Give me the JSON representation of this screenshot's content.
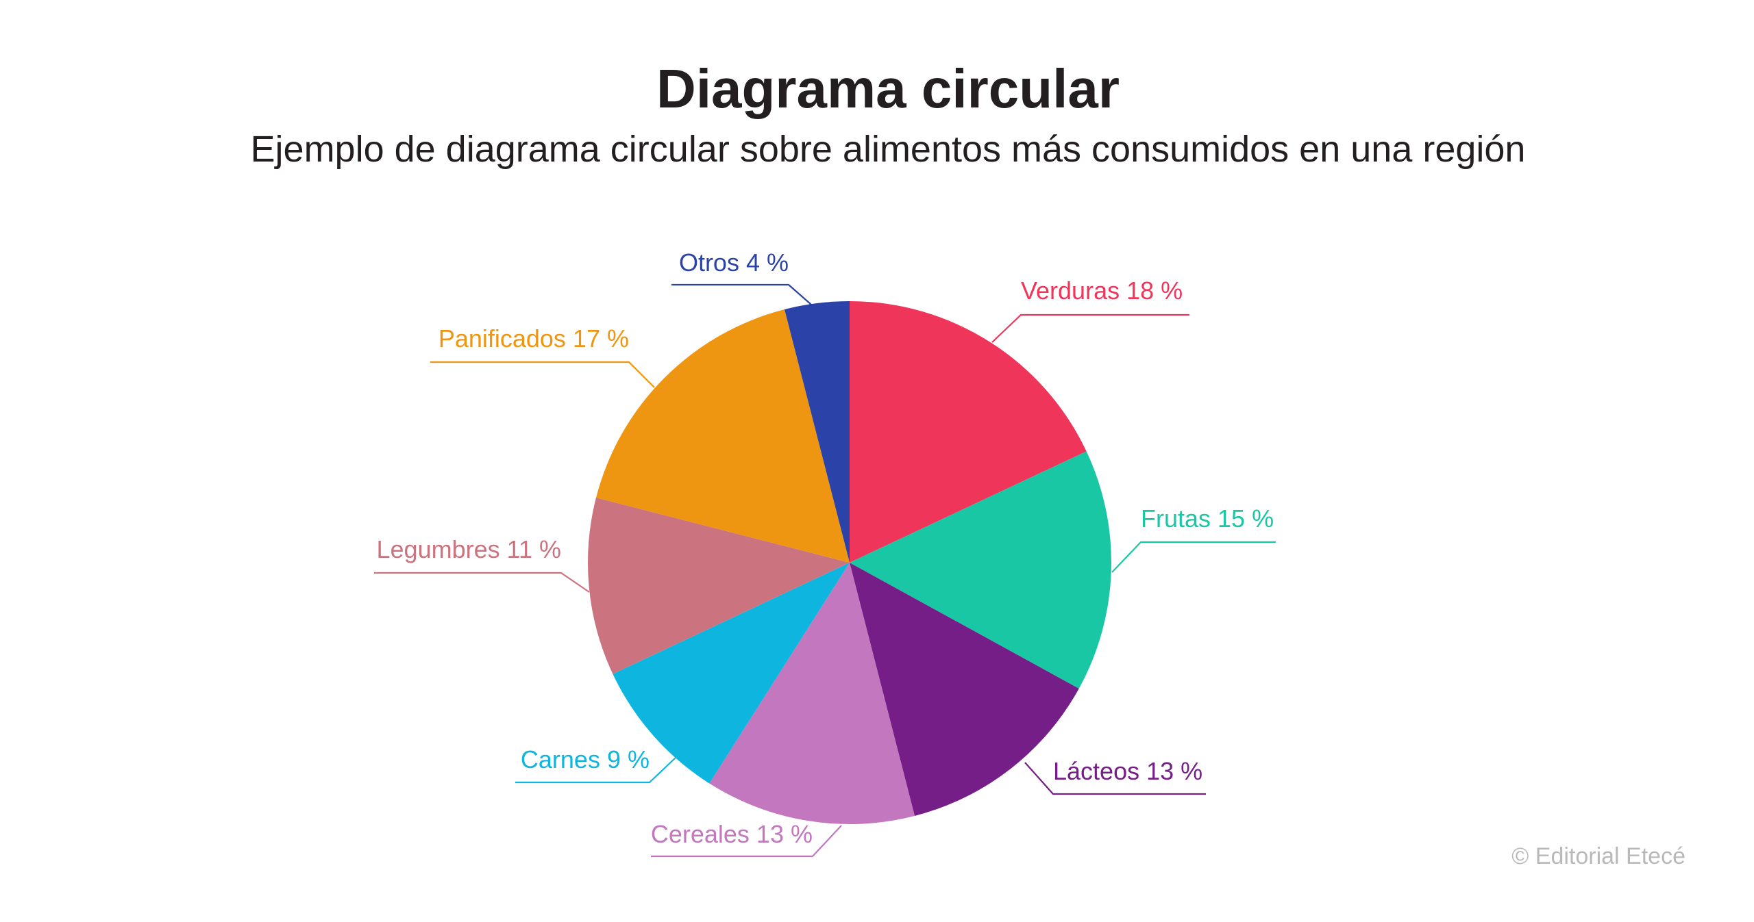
{
  "title": "Diagrama circular",
  "subtitle": "Ejemplo de diagrama circular sobre alimentos más consumidos en una región",
  "watermark": "© Editorial Etecé",
  "chart_data": {
    "type": "pie",
    "start_angle": "top",
    "direction": "clockwise",
    "slices": [
      {
        "label": "Verduras 18 %",
        "category": "Verduras",
        "value": 18,
        "color": "#f0355b"
      },
      {
        "label": "Frutas 15 %",
        "category": "Frutas",
        "value": 15,
        "color": "#1ac7a4"
      },
      {
        "label": "Lácteos 13 %",
        "category": "Lácteos",
        "value": 13,
        "color": "#761e87"
      },
      {
        "label": "Cereales 13 %",
        "category": "Cereales",
        "value": 13,
        "color": "#c277bf"
      },
      {
        "label": "Carnes 9 %",
        "category": "Carnes",
        "value": 9,
        "color": "#0db5df"
      },
      {
        "label": "Legumbres 11 %",
        "category": "Legumbres",
        "value": 11,
        "color": "#cb737f"
      },
      {
        "label": "Panificados 17 %",
        "category": "Panificados",
        "value": 17,
        "color": "#ee9612"
      },
      {
        "label": "Otros 4 %",
        "category": "Otros",
        "value": 4,
        "color": "#2b43a8"
      }
    ]
  }
}
